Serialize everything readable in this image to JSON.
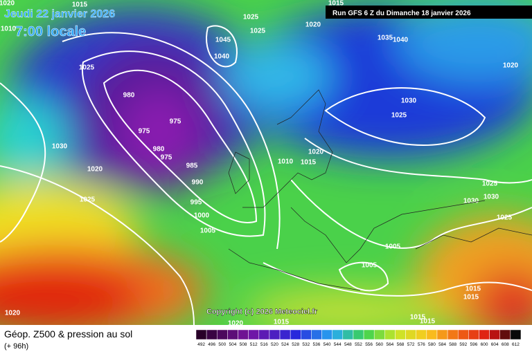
{
  "header": {
    "date": "Jeudi 22 janvier 2026",
    "time": "7:00 locale",
    "run": "Run GFS 6 Z du Dimanche 18 janvier 2026"
  },
  "copyright": "Copyright (c) 2026 Meteociel.fr",
  "footer": {
    "title": "Géop. Z500 & pression au sol",
    "lead": "(+ 96h)"
  },
  "scale": {
    "labels": [
      492,
      496,
      500,
      504,
      508,
      512,
      516,
      520,
      524,
      528,
      532,
      536,
      540,
      544,
      548,
      552,
      556,
      560,
      564,
      568,
      572,
      576,
      580,
      584,
      588,
      592,
      596,
      600,
      604,
      608,
      612
    ]
  },
  "isobar_labels": [
    "1015",
    "1020",
    "1015",
    "1025",
    "1025",
    "1020",
    "1010",
    "1025",
    "1040",
    "1035",
    "1045",
    "1040",
    "1020",
    "980",
    "975",
    "975",
    "980",
    "975",
    "985",
    "990",
    "995",
    "1000",
    "1005",
    "1030",
    "1020",
    "1025",
    "1030",
    "1025",
    "1020",
    "1015",
    "1010",
    "1025",
    "1030",
    "1030",
    "1025",
    "1005",
    "1005",
    "1015",
    "1015",
    "1015",
    "1015",
    "1015",
    "1020",
    "1020"
  ]
}
